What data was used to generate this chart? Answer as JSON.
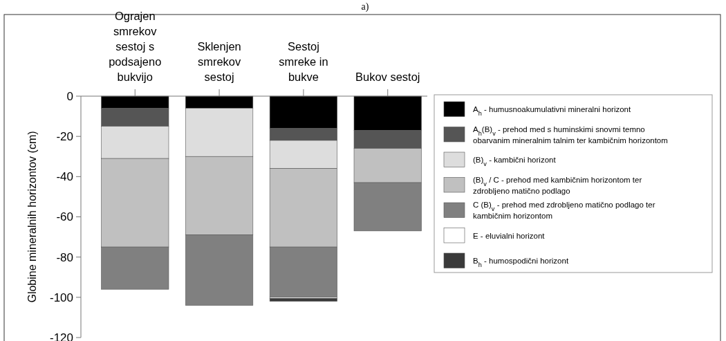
{
  "chart_data": {
    "type": "bar",
    "title": "a)",
    "stacked": true,
    "ylabel": "Globine mineralnih horizontov (cm)",
    "categories": [
      "Ograjen smrekov sestoj s podsajeno bukvijo",
      "Sklenjen smrekov sestoj",
      "Sestoj smreke in bukve",
      "Bukov sestoj"
    ],
    "ylim": [
      -120,
      0
    ],
    "yticks": [
      0,
      -20,
      -40,
      -60,
      -80,
      -100,
      -120
    ],
    "grid": false,
    "legend": "right",
    "series": [
      {
        "name": "A$_{h}$ - humusnoakumulativni mineralni horizont",
        "color": "#000000",
        "values": [
          -6,
          -6,
          -16,
          -17
        ]
      },
      {
        "name": "A$_{h}$(B)$_{v}$ - prehod med s huminskimi snovmi temno obarvanim mineralnim talnim ter kambičnim horizontom",
        "color": "#555555",
        "values": [
          -9,
          0,
          -6,
          -9
        ]
      },
      {
        "name": "(B)$_{v}$ - kambični horizont",
        "color": "#dddddd",
        "values": [
          -16,
          -24,
          -14,
          0
        ]
      },
      {
        "name": "(B)$_{v}$ / C - prehod med kambičnim horizontom ter zdrobljeno matično podlago",
        "color": "#c0c0c0",
        "values": [
          -44,
          -39,
          -39,
          -17
        ]
      },
      {
        "name": "C (B)$_{v}$ - prehod med zdrobljeno matično podlago ter kambičnim horizontom",
        "color": "#808080",
        "values": [
          -21,
          -35,
          -25,
          -24
        ]
      },
      {
        "name": "E - eluvialni horizont",
        "color": "#ffffff",
        "values": [
          0,
          0,
          -0.5,
          0
        ]
      },
      {
        "name": "B$_{h}$ - humospodični horizont",
        "color": "#3a3a3a",
        "values": [
          0,
          0,
          -1.5,
          0
        ]
      }
    ]
  }
}
